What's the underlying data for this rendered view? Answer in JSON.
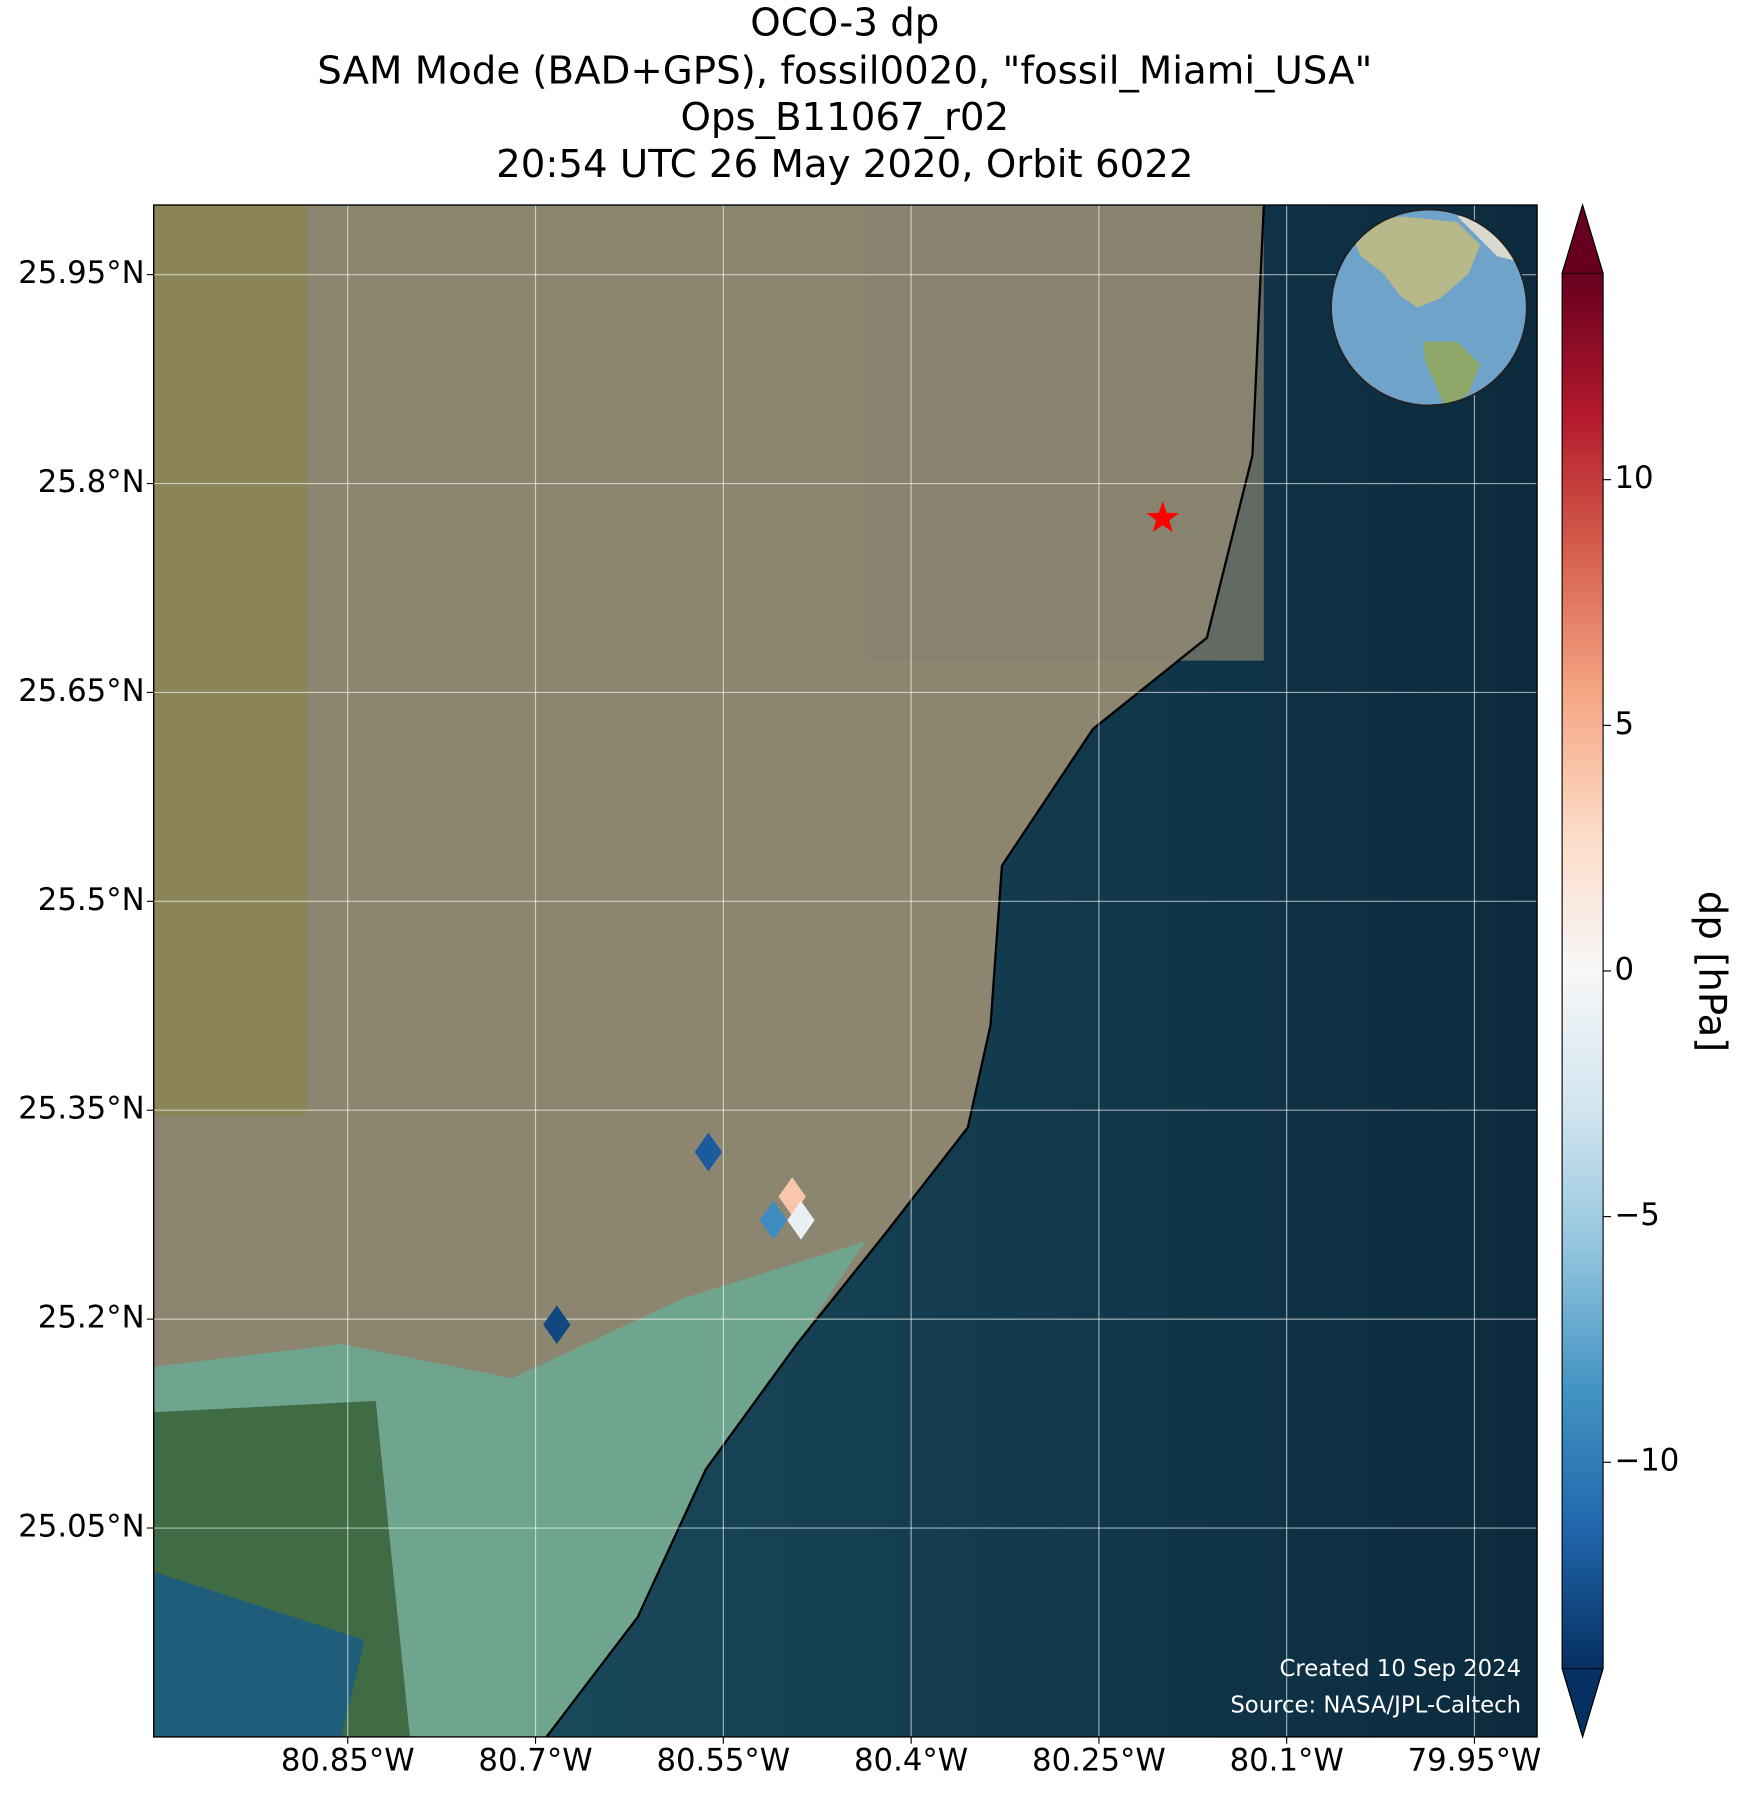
{
  "chart_data": {
    "type": "scatter",
    "title": [
      "OCO-3 dp",
      "SAM Mode (BAD+GPS), fossil0020, \"fossil_Miami_USA\"",
      "Ops_B11067_r02",
      "20:54 UTC 26 May 2020, Orbit 6022"
    ],
    "x": [
      -80.562,
      -80.495,
      -80.51,
      -80.488,
      -80.683
    ],
    "y": [
      25.32,
      25.288,
      25.271,
      25.271,
      25.196
    ],
    "values": [
      -12,
      4,
      -9,
      -1,
      -13
    ],
    "xlim": [
      -81.005,
      -79.9
    ],
    "ylim": [
      24.9,
      26.0
    ],
    "xticks": [
      {
        "value": -80.85,
        "label": "80.85°W"
      },
      {
        "value": -80.7,
        "label": "80.7°W"
      },
      {
        "value": -80.55,
        "label": "80.55°W"
      },
      {
        "value": -80.4,
        "label": "80.4°W"
      },
      {
        "value": -80.25,
        "label": "80.25°W"
      },
      {
        "value": -80.1,
        "label": "80.1°W"
      },
      {
        "value": -79.95,
        "label": "79.95°W"
      }
    ],
    "yticks": [
      {
        "value": 25.05,
        "label": "25.05°N"
      },
      {
        "value": 25.2,
        "label": "25.2°N"
      },
      {
        "value": 25.35,
        "label": "25.35°N"
      },
      {
        "value": 25.5,
        "label": "25.5°N"
      },
      {
        "value": 25.65,
        "label": "25.65°N"
      },
      {
        "value": 25.8,
        "label": "25.8°N"
      },
      {
        "value": 25.95,
        "label": "25.95°N"
      }
    ],
    "grid": true,
    "target": {
      "lon": -80.199,
      "lat": 25.775,
      "color": "#ff0000"
    },
    "colormap": "RdBu_r",
    "colorbar": {
      "label": "dp [hPa]",
      "lim": [
        -14.2,
        14.2
      ],
      "ticks": [
        {
          "value": -10,
          "label": "−10"
        },
        {
          "value": -5,
          "label": "−5"
        },
        0,
        5,
        10
      ]
    },
    "credits": [
      "Created 10 Sep 2024",
      "Source: NASA/JPL-Caltech"
    ]
  }
}
